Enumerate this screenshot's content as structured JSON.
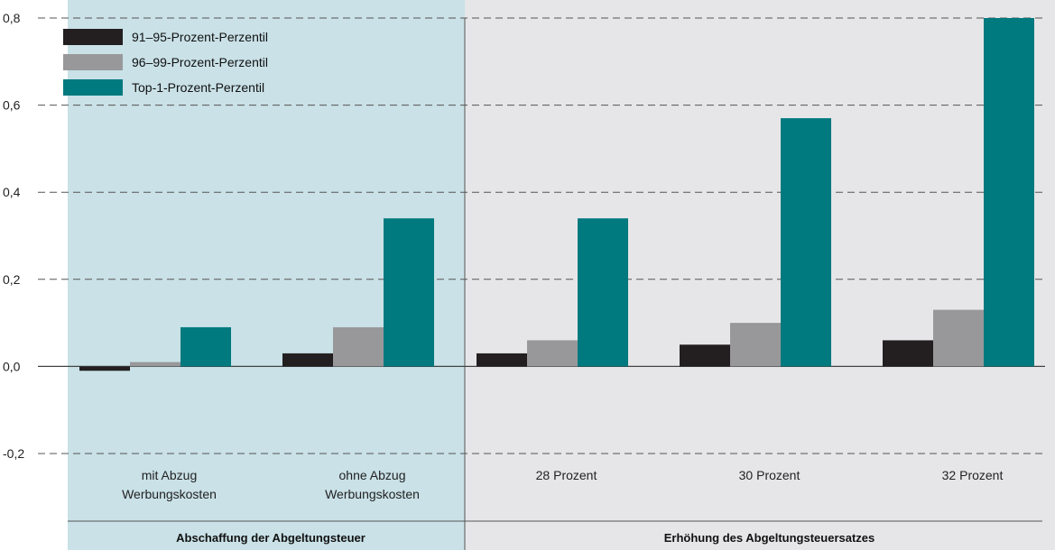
{
  "chart_data": {
    "type": "bar",
    "ylim": [
      -0.2,
      0.8
    ],
    "yticks": [
      "0,8",
      "0,6",
      "0,4",
      "0,2",
      "0,0",
      "-0,2"
    ],
    "ytick_values": [
      0.8,
      0.6,
      0.4,
      0.2,
      0.0,
      -0.2
    ],
    "grid": "dashed horizontal",
    "legend_position": "top-left",
    "categories": [
      [
        "mit Abzug",
        "Werbungskosten"
      ],
      [
        "ohne Abzug",
        "Werbungskosten"
      ],
      [
        "28 Prozent"
      ],
      [
        "30 Prozent"
      ],
      [
        "32 Prozent"
      ]
    ],
    "groups": [
      {
        "label": "Abschaffung der Abgeltungsteuer",
        "categories": [
          0,
          1
        ],
        "background": "#c9e1e7"
      },
      {
        "label": "Erhöhung des Abgeltungsteuersatzes",
        "categories": [
          2,
          3,
          4
        ],
        "background": "#e6e6e8"
      }
    ],
    "series": [
      {
        "name": "91–95-Prozent-Perzentil",
        "color": "#231f20",
        "values": [
          -0.01,
          0.03,
          0.03,
          0.05,
          0.06
        ]
      },
      {
        "name": "96–99-Prozent-Perzentil",
        "color": "#98989a",
        "values": [
          0.01,
          0.09,
          0.06,
          0.1,
          0.13
        ]
      },
      {
        "name": "Top-1-Prozent-Perzentil",
        "color": "#00797f",
        "values": [
          0.09,
          0.34,
          0.34,
          0.57,
          0.8
        ]
      }
    ]
  }
}
